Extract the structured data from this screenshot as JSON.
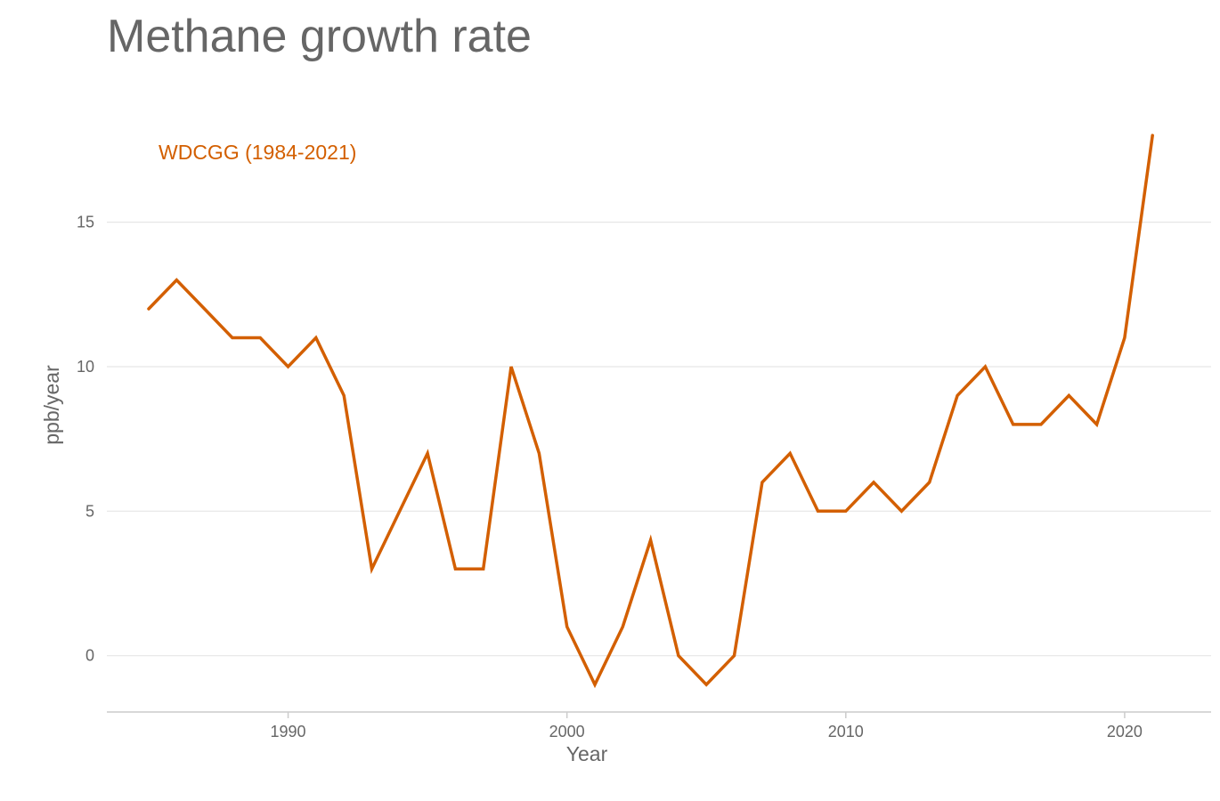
{
  "chart_data": {
    "type": "line",
    "title": "Methane growth rate",
    "xlabel": "Year",
    "ylabel": "ppb/year",
    "xlim": [
      1983.5,
      2023.1
    ],
    "ylim": [
      -1.95,
      19.3
    ],
    "xticks": [
      1990,
      2000,
      2010,
      2020
    ],
    "yticks": [
      0,
      5,
      10,
      15
    ],
    "grid": "horizontal",
    "legend": {
      "placement": "top-left",
      "inline": true
    },
    "series": [
      {
        "name": "WDCGG (1984-2021)",
        "color": "#d35f00",
        "x": [
          1985,
          1986,
          1987,
          1988,
          1989,
          1990,
          1991,
          1992,
          1993,
          1994,
          1995,
          1996,
          1997,
          1998,
          1999,
          2000,
          2001,
          2002,
          2003,
          2004,
          2005,
          2006,
          2007,
          2008,
          2009,
          2010,
          2011,
          2012,
          2013,
          2014,
          2015,
          2016,
          2017,
          2018,
          2019,
          2020,
          2021
        ],
        "y": [
          12,
          13,
          12,
          11,
          11,
          10,
          11,
          9,
          3,
          5,
          7,
          3,
          3,
          10,
          7,
          1,
          -1,
          1,
          4,
          0,
          -1,
          0,
          6,
          7,
          5,
          5,
          6,
          5,
          6,
          9,
          10,
          8,
          8,
          9,
          8,
          11,
          18
        ]
      }
    ]
  }
}
